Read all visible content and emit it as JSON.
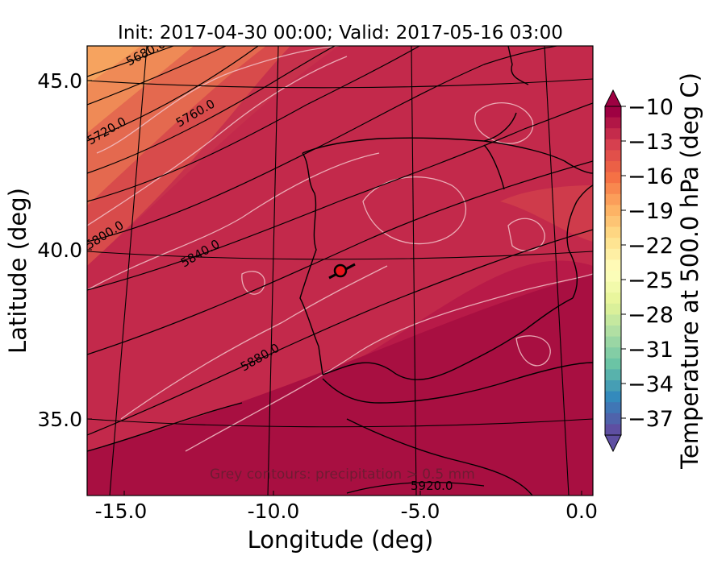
{
  "title": "Init: 2017-04-30 00:00; Valid: 2017-05-16 03:00",
  "xlabel": "Longitude (deg)",
  "ylabel": "Latitude (deg)",
  "colorbar_label": "Temperature at 500.0 hPa (deg C)",
  "annotation": "Grey contours: precipitation > 0.5 mm",
  "x_ticks": [
    "-15.0",
    "-10.0",
    "-5.0",
    "0.0"
  ],
  "y_ticks": [
    "45.0",
    "40.0",
    "35.0"
  ],
  "colorbar_ticks": [
    "−10",
    "−13",
    "−16",
    "−19",
    "−22",
    "−25",
    "−28",
    "−31",
    "−34",
    "−37"
  ],
  "contour_labels": [
    "5680.0",
    "5720.0",
    "5760.0",
    "5800.0",
    "5840.0",
    "5880.0",
    "5920.0"
  ],
  "colormap": "Spectral_r",
  "extent": {
    "lon": [
      -15.9,
      0.1
    ],
    "lat": [
      32.6,
      46.1
    ]
  },
  "marker": {
    "lon": -7.7,
    "lat": 39.3,
    "color": "#e8141b"
  }
}
